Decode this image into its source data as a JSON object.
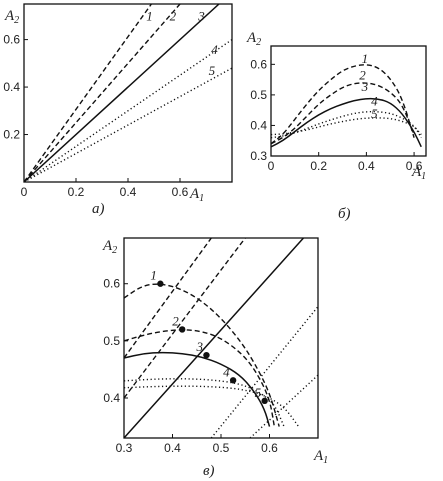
{
  "chart_data": [
    {
      "panel": "a",
      "type": "line",
      "caption": "а)",
      "xlabel": "A1",
      "ylabel": "A2",
      "xlim": [
        0,
        0.8
      ],
      "ylim": [
        0,
        0.75
      ],
      "xticks": [
        0,
        0.2,
        0.4,
        0.6
      ],
      "yticks": [
        0.2,
        0.4,
        0.6
      ],
      "grid": false,
      "series": [
        {
          "name": "1",
          "style": "dashed",
          "x": [
            0,
            0.49
          ],
          "y": [
            0,
            0.75
          ]
        },
        {
          "name": "2",
          "style": "dashed",
          "x": [
            0,
            0.6
          ],
          "y": [
            0,
            0.75
          ]
        },
        {
          "name": "3",
          "style": "solid",
          "x": [
            0,
            0.75
          ],
          "y": [
            0,
            0.75
          ]
        },
        {
          "name": "4",
          "style": "dotted",
          "x": [
            0,
            0.8
          ],
          "y": [
            0,
            0.6
          ]
        },
        {
          "name": "5",
          "style": "dotted",
          "x": [
            0,
            0.8
          ],
          "y": [
            0,
            0.48
          ]
        }
      ]
    },
    {
      "panel": "b",
      "type": "line",
      "caption": "б)",
      "xlabel": "A1",
      "ylabel": "A2",
      "xlim": [
        0,
        0.65
      ],
      "ylim": [
        0.3,
        0.66
      ],
      "xticks": [
        0,
        0.2,
        0.4,
        0.6
      ],
      "yticks": [
        0.3,
        0.4,
        0.5,
        0.6
      ],
      "grid": false,
      "series": [
        {
          "name": "1",
          "style": "dashed",
          "x": [
            0,
            0.05,
            0.1,
            0.15,
            0.2,
            0.25,
            0.3,
            0.35,
            0.4,
            0.45,
            0.5,
            0.55,
            0.6
          ],
          "y": [
            0.34,
            0.37,
            0.42,
            0.47,
            0.515,
            0.55,
            0.58,
            0.595,
            0.6,
            0.59,
            0.555,
            0.49,
            0.36
          ]
        },
        {
          "name": "2",
          "style": "dashed",
          "x": [
            0,
            0.05,
            0.1,
            0.15,
            0.2,
            0.25,
            0.3,
            0.35,
            0.4,
            0.45,
            0.5,
            0.55,
            0.6
          ],
          "y": [
            0.34,
            0.36,
            0.39,
            0.43,
            0.47,
            0.5,
            0.525,
            0.538,
            0.54,
            0.532,
            0.51,
            0.47,
            0.37
          ]
        },
        {
          "name": "3",
          "style": "solid",
          "x": [
            0,
            0.05,
            0.1,
            0.15,
            0.2,
            0.25,
            0.3,
            0.35,
            0.4,
            0.45,
            0.5,
            0.55,
            0.6,
            0.63
          ],
          "y": [
            0.33,
            0.35,
            0.38,
            0.41,
            0.435,
            0.455,
            0.47,
            0.482,
            0.488,
            0.487,
            0.475,
            0.44,
            0.38,
            0.33
          ]
        },
        {
          "name": "4",
          "style": "dotted",
          "x": [
            0,
            0.05,
            0.1,
            0.15,
            0.2,
            0.25,
            0.3,
            0.35,
            0.4,
            0.45,
            0.5,
            0.55,
            0.6,
            0.63
          ],
          "y": [
            0.36,
            0.365,
            0.375,
            0.39,
            0.405,
            0.418,
            0.43,
            0.44,
            0.445,
            0.445,
            0.44,
            0.425,
            0.4,
            0.36
          ]
        },
        {
          "name": "5",
          "style": "dotted",
          "x": [
            0,
            0.05,
            0.1,
            0.15,
            0.2,
            0.25,
            0.3,
            0.35,
            0.4,
            0.45,
            0.5,
            0.55,
            0.6,
            0.63
          ],
          "y": [
            0.37,
            0.372,
            0.378,
            0.385,
            0.395,
            0.405,
            0.413,
            0.42,
            0.424,
            0.425,
            0.423,
            0.414,
            0.398,
            0.37
          ]
        }
      ]
    },
    {
      "panel": "c",
      "type": "line",
      "caption": "в)",
      "xlabel": "A1",
      "ylabel": "A2",
      "xlim": [
        0.3,
        0.7
      ],
      "ylim": [
        0.33,
        0.68
      ],
      "xticks": [
        0.3,
        0.4,
        0.5,
        0.6
      ],
      "yticks": [
        0.4,
        0.5,
        0.6
      ],
      "grid": false,
      "series": [
        {
          "name": "1",
          "style": "dashed",
          "curve": "arc",
          "x": [
            0.3,
            0.34,
            0.38,
            0.42,
            0.46,
            0.5,
            0.54,
            0.57,
            0.6,
            0.62
          ],
          "y": [
            0.575,
            0.598,
            0.6,
            0.59,
            0.57,
            0.54,
            0.5,
            0.46,
            0.41,
            0.35
          ]
        },
        {
          "name": "2",
          "style": "dashed",
          "curve": "arc",
          "x": [
            0.3,
            0.34,
            0.38,
            0.42,
            0.46,
            0.5,
            0.54,
            0.57,
            0.6,
            0.61
          ],
          "y": [
            0.5,
            0.51,
            0.517,
            0.52,
            0.517,
            0.505,
            0.48,
            0.45,
            0.4,
            0.35
          ]
        },
        {
          "name": "3",
          "style": "solid",
          "curve": "arc",
          "x": [
            0.3,
            0.34,
            0.38,
            0.42,
            0.46,
            0.5,
            0.54,
            0.57,
            0.59,
            0.6
          ],
          "y": [
            0.47,
            0.478,
            0.48,
            0.478,
            0.472,
            0.46,
            0.44,
            0.41,
            0.38,
            0.35
          ]
        },
        {
          "name": "4",
          "style": "dotted",
          "curve": "arc",
          "x": [
            0.3,
            0.36,
            0.42,
            0.48,
            0.54,
            0.58,
            0.61,
            0.63
          ],
          "y": [
            0.43,
            0.433,
            0.434,
            0.432,
            0.425,
            0.41,
            0.39,
            0.35
          ]
        },
        {
          "name": "5",
          "style": "dotted",
          "curve": "arc",
          "x": [
            0.3,
            0.36,
            0.42,
            0.48,
            0.54,
            0.59,
            0.63,
            0.66
          ],
          "y": [
            0.418,
            0.42,
            0.421,
            0.42,
            0.416,
            0.405,
            0.385,
            0.35
          ]
        },
        {
          "name": "1",
          "style": "dashed",
          "curve": "line",
          "x": [
            0.3,
            0.48
          ],
          "y": [
            0.47,
            0.68
          ]
        },
        {
          "name": "2",
          "style": "dashed",
          "curve": "line",
          "x": [
            0.3,
            0.55
          ],
          "y": [
            0.4,
            0.68
          ]
        },
        {
          "name": "3",
          "style": "solid",
          "curve": "line",
          "x": [
            0.3,
            0.67
          ],
          "y": [
            0.33,
            0.68
          ]
        },
        {
          "name": "4",
          "style": "dotted",
          "curve": "line",
          "x": [
            0.48,
            0.7
          ],
          "y": [
            0.33,
            0.56
          ]
        },
        {
          "name": "5",
          "style": "dotted",
          "curve": "line",
          "x": [
            0.56,
            0.7
          ],
          "y": [
            0.33,
            0.44
          ]
        }
      ],
      "points": [
        {
          "label": "1",
          "x": 0.375,
          "y": 0.6
        },
        {
          "label": "2",
          "x": 0.42,
          "y": 0.52
        },
        {
          "label": "3",
          "x": 0.47,
          "y": 0.475
        },
        {
          "label": "4",
          "x": 0.525,
          "y": 0.431
        },
        {
          "label": "5",
          "x": 0.59,
          "y": 0.395
        }
      ]
    }
  ]
}
